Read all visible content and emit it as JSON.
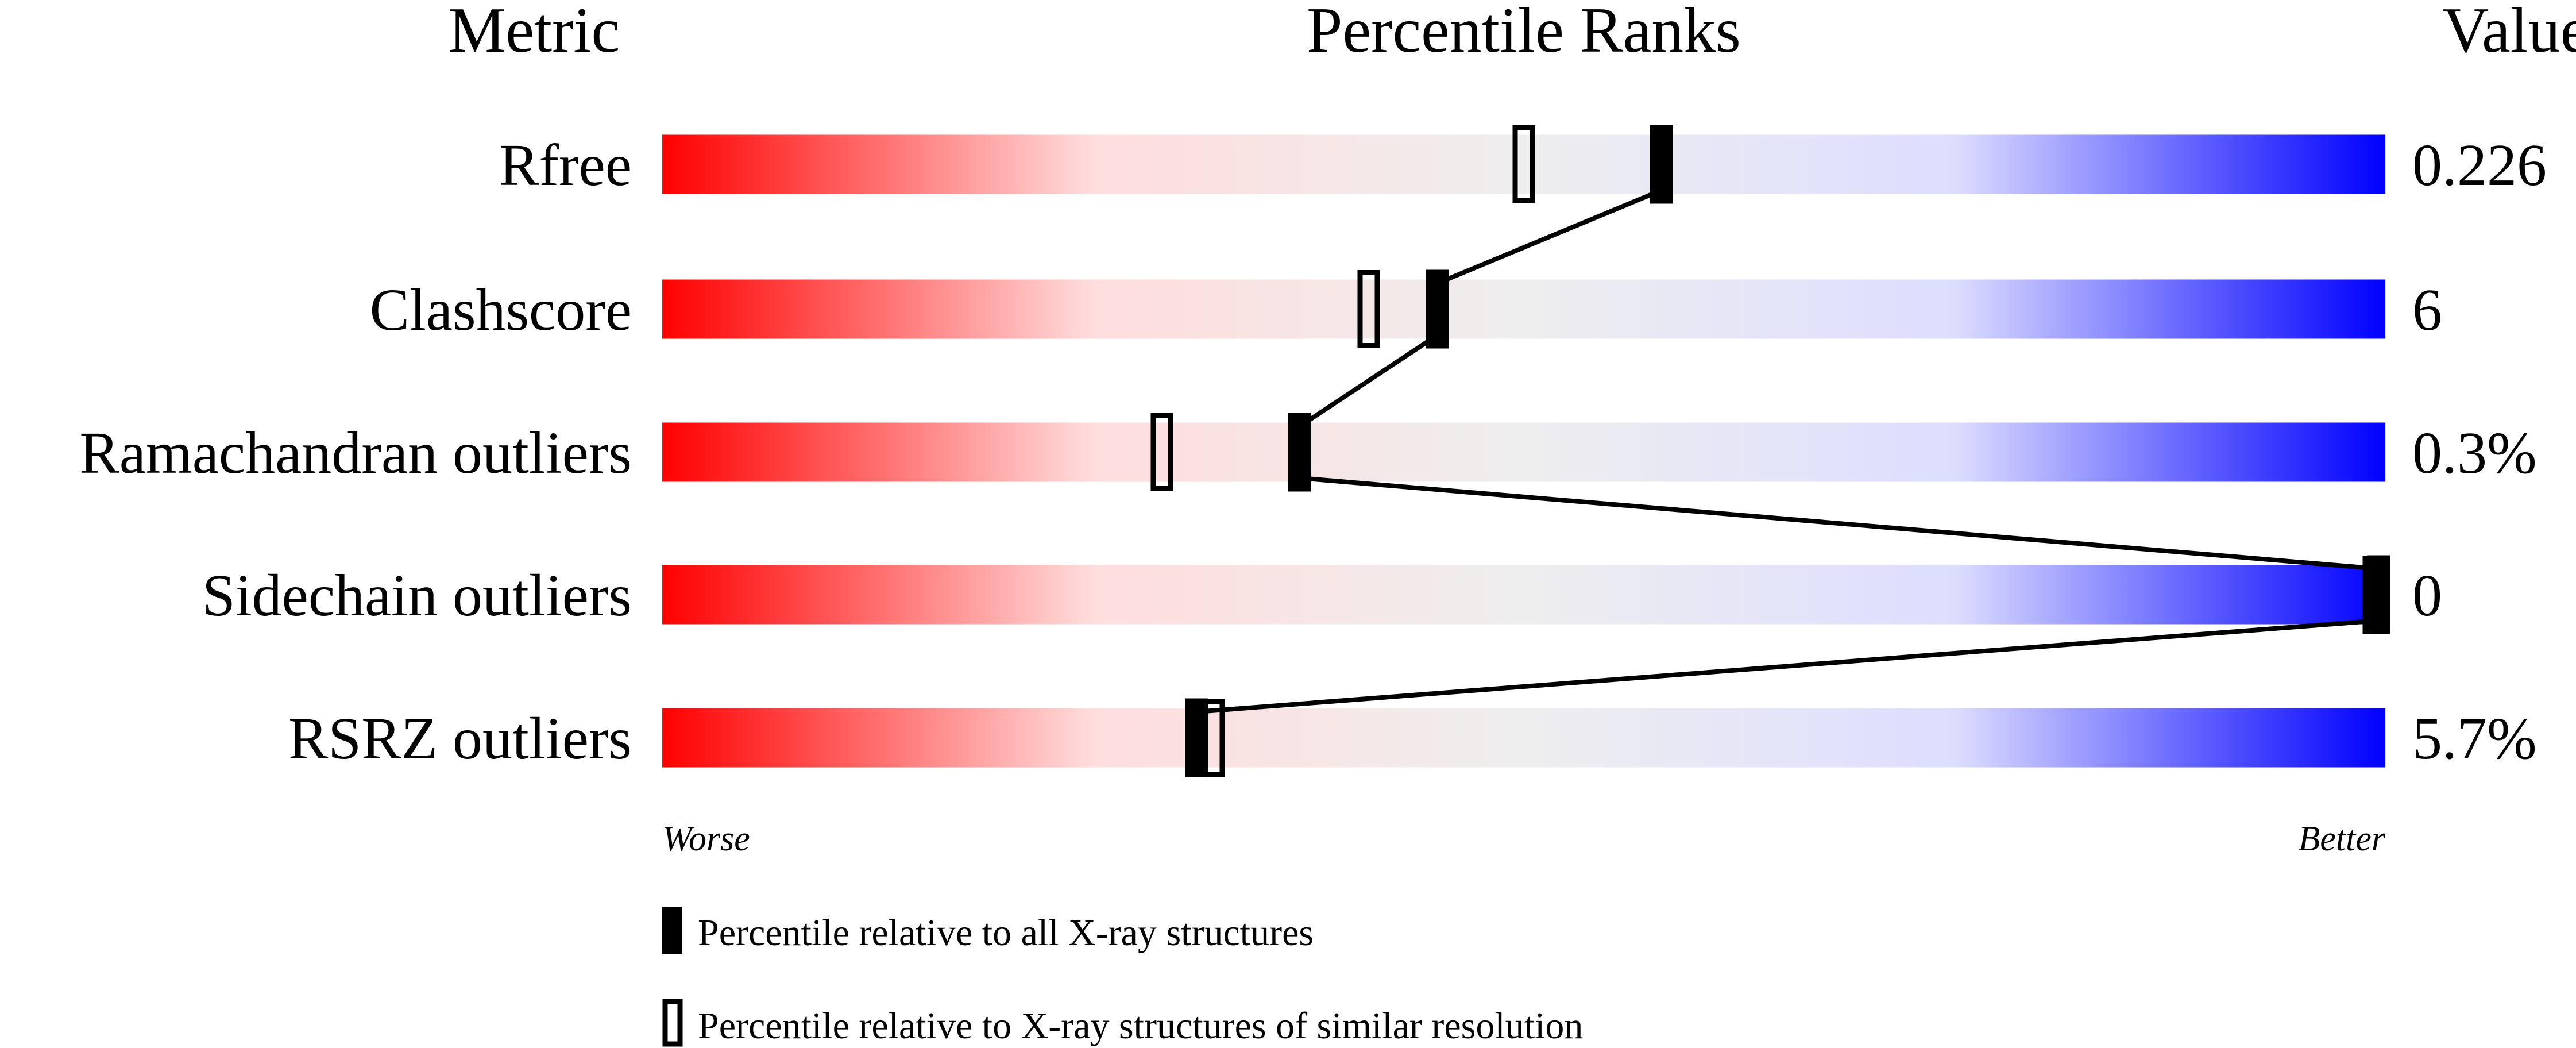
{
  "chart_data": {
    "type": "percentile-bar",
    "headers": {
      "metric": "Metric",
      "percentile": "Percentile Ranks",
      "value": "Value"
    },
    "xlim": [
      0,
      100
    ],
    "axis_labels": {
      "left": "Worse",
      "right": "Better"
    },
    "gradient_colors": [
      "#ff0000",
      "#ffdddd",
      "#eeeeee",
      "#ddddff",
      "#0000ff"
    ],
    "metrics": [
      {
        "name": "Rfree",
        "value": "0.226",
        "percentile_all": 58,
        "percentile_similar": 50
      },
      {
        "name": "Clashscore",
        "value": "6",
        "percentile_all": 45,
        "percentile_similar": 41
      },
      {
        "name": "Ramachandran outliers",
        "value": "0.3%",
        "percentile_all": 37,
        "percentile_similar": 29
      },
      {
        "name": "Sidechain outliers",
        "value": "0",
        "percentile_all": 100,
        "percentile_similar": 100
      },
      {
        "name": "RSRZ outliers",
        "value": "5.7%",
        "percentile_all": 31,
        "percentile_similar": 32
      }
    ],
    "legend": {
      "filled": "Percentile relative to all X-ray structures",
      "open": "Percentile relative to X-ray structures of similar resolution"
    }
  }
}
